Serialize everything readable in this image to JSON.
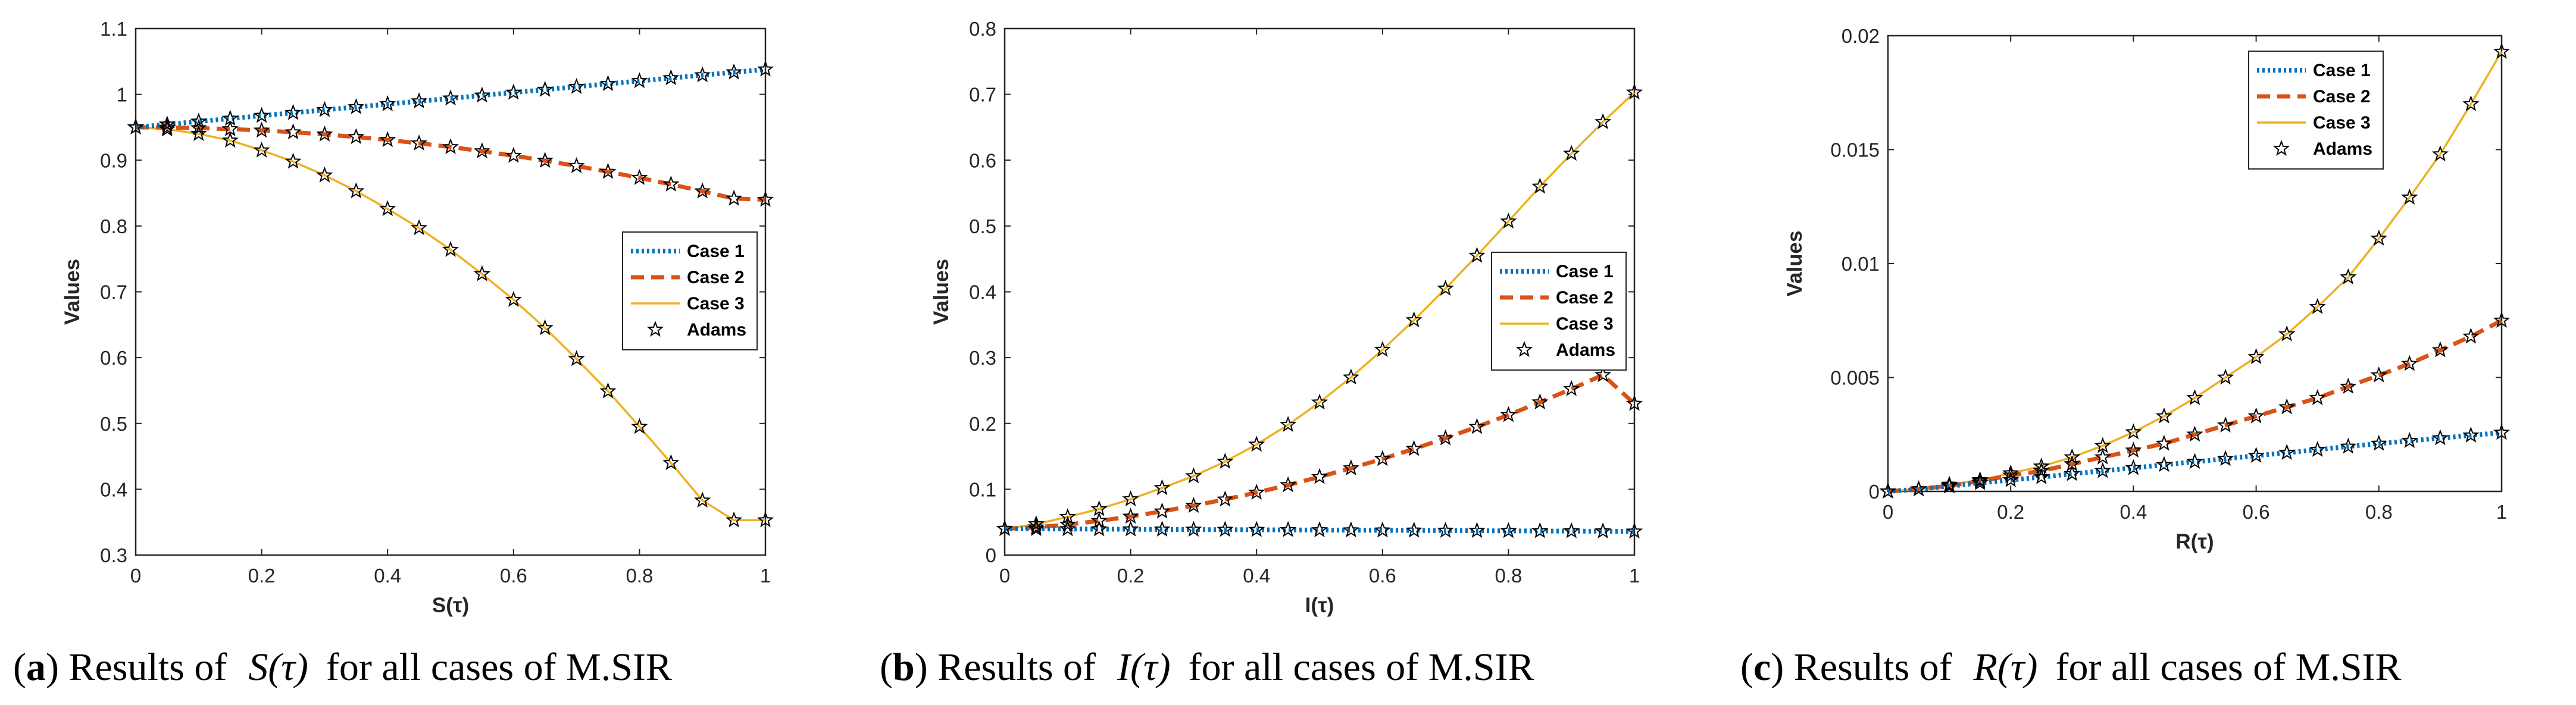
{
  "chart_data": [
    {
      "type": "line",
      "id": "a",
      "xlabel": "S(τ)",
      "ylabel": "Values",
      "xlim": [
        0,
        1
      ],
      "ylim": [
        0.3,
        1.1
      ],
      "xticks": [
        "0",
        "0.2",
        "0.4",
        "0.6",
        "0.8",
        "1"
      ],
      "yticks": [
        "0.3",
        "0.4",
        "0.5",
        "0.6",
        "0.7",
        "0.8",
        "0.9",
        "1",
        "1.1"
      ],
      "legend": [
        "Case 1",
        "Case 2",
        "Case 3",
        "Adams"
      ],
      "legend_position": "center-right",
      "x": [
        0,
        0.05,
        0.1,
        0.15,
        0.2,
        0.25,
        0.3,
        0.35,
        0.4,
        0.45,
        0.5,
        0.55,
        0.6,
        0.65,
        0.7,
        0.75,
        0.8,
        0.85,
        0.9,
        0.95,
        1
      ],
      "series": [
        {
          "name": "Case 1",
          "color": "#0072BD",
          "style": "dotted",
          "values": [
            0.95,
            0.9544,
            0.9588,
            0.9632,
            0.9676,
            0.972,
            0.9764,
            0.9808,
            0.9852,
            0.9896,
            0.994,
            0.9984,
            1.0028,
            1.0072,
            1.0116,
            1.016,
            1.0204,
            1.0248,
            1.0292,
            1.0336,
            1.038
          ]
        },
        {
          "name": "Case 2",
          "color": "#D95319",
          "style": "dashed",
          "values": [
            0.95,
            0.9497,
            0.9488,
            0.9473,
            0.9452,
            0.9425,
            0.9392,
            0.9353,
            0.9308,
            0.9257,
            0.92,
            0.9137,
            0.9068,
            0.8993,
            0.8912,
            0.8825,
            0.8732,
            0.8633,
            0.8528,
            0.8417,
            0.84
          ]
        },
        {
          "name": "Case 3",
          "color": "#EDB120",
          "style": "solid",
          "values": [
            0.95,
            0.947,
            0.94,
            0.93,
            0.915,
            0.898,
            0.877,
            0.853,
            0.826,
            0.797,
            0.764,
            0.727,
            0.688,
            0.645,
            0.598,
            0.549,
            0.495,
            0.44,
            0.383,
            0.353,
            0.353
          ]
        }
      ],
      "markers": {
        "name": "Adams",
        "color": "#000000",
        "style": "pentagram"
      }
    },
    {
      "type": "line",
      "id": "b",
      "xlabel": "I(τ)",
      "ylabel": "Values",
      "xlim": [
        0,
        1
      ],
      "ylim": [
        0,
        0.8
      ],
      "xticks": [
        "0",
        "0.2",
        "0.4",
        "0.6",
        "0.8",
        "1"
      ],
      "yticks": [
        "0",
        "0.1",
        "0.2",
        "0.3",
        "0.4",
        "0.5",
        "0.6",
        "0.7",
        "0.8"
      ],
      "legend": [
        "Case 1",
        "Case 2",
        "Case 3",
        "Adams"
      ],
      "legend_position": "center-right",
      "x": [
        0,
        0.05,
        0.1,
        0.15,
        0.2,
        0.25,
        0.3,
        0.35,
        0.4,
        0.45,
        0.5,
        0.55,
        0.6,
        0.65,
        0.7,
        0.75,
        0.8,
        0.85,
        0.9,
        0.95,
        1
      ],
      "series": [
        {
          "name": "Case 1",
          "color": "#0072BD",
          "style": "dotted",
          "values": [
            0.04,
            0.0398,
            0.0396,
            0.0394,
            0.0392,
            0.039,
            0.0388,
            0.0386,
            0.0384,
            0.0382,
            0.038,
            0.0378,
            0.0376,
            0.0374,
            0.0372,
            0.037,
            0.0368,
            0.0366,
            0.0364,
            0.0362,
            0.036
          ]
        },
        {
          "name": "Case 2",
          "color": "#D95319",
          "style": "dashed",
          "values": [
            0.04,
            0.0422,
            0.0464,
            0.052,
            0.0586,
            0.0664,
            0.075,
            0.0846,
            0.095,
            0.1064,
            0.1188,
            0.132,
            0.1462,
            0.1614,
            0.1776,
            0.1948,
            0.213,
            0.2322,
            0.2524,
            0.2736,
            0.23
          ]
        },
        {
          "name": "Case 3",
          "color": "#EDB120",
          "style": "solid",
          "values": [
            0.04,
            0.047,
            0.058,
            0.07,
            0.085,
            0.102,
            0.12,
            0.142,
            0.168,
            0.198,
            0.232,
            0.27,
            0.312,
            0.357,
            0.405,
            0.455,
            0.507,
            0.56,
            0.61,
            0.658,
            0.703
          ]
        }
      ],
      "markers": {
        "name": "Adams",
        "color": "#000000",
        "style": "pentagram"
      }
    },
    {
      "type": "line",
      "id": "c",
      "xlabel": "R(τ)",
      "ylabel": "Values",
      "xlim": [
        0,
        1
      ],
      "ylim": [
        0,
        0.02
      ],
      "xticks": [
        "0",
        "0.2",
        "0.4",
        "0.6",
        "0.8",
        "1"
      ],
      "yticks": [
        "0",
        "0.005",
        "0.01",
        "0.015",
        "0.02"
      ],
      "legend": [
        "Case 1",
        "Case 2",
        "Case 3",
        "Adams"
      ],
      "legend_position": "top-center",
      "x": [
        0,
        0.05,
        0.1,
        0.15,
        0.2,
        0.25,
        0.3,
        0.35,
        0.4,
        0.45,
        0.5,
        0.55,
        0.6,
        0.65,
        0.7,
        0.75,
        0.8,
        0.85,
        0.9,
        0.95,
        1
      ],
      "series": [
        {
          "name": "Case 1",
          "color": "#0072BD",
          "style": "dotted",
          "values": [
            0,
            0.0001,
            0.00023,
            0.00037,
            0.0005,
            0.00063,
            0.00077,
            0.0009,
            0.00103,
            0.00117,
            0.0013,
            0.00143,
            0.00157,
            0.0017,
            0.00183,
            0.00197,
            0.0021,
            0.00222,
            0.00234,
            0.00246,
            0.00258
          ]
        },
        {
          "name": "Case 2",
          "color": "#D95319",
          "style": "dashed",
          "values": [
            0,
            0.0001,
            0.00025,
            0.00045,
            0.0007,
            0.0009,
            0.0012,
            0.0015,
            0.0018,
            0.0021,
            0.0025,
            0.0029,
            0.0033,
            0.0037,
            0.0041,
            0.0046,
            0.0051,
            0.0056,
            0.0062,
            0.0068,
            0.0075
          ]
        },
        {
          "name": "Case 3",
          "color": "#EDB120",
          "style": "solid",
          "values": [
            0,
            0.0001,
            0.0003,
            0.0005,
            0.0008,
            0.0011,
            0.0015,
            0.002,
            0.0026,
            0.0033,
            0.0041,
            0.005,
            0.0059,
            0.0069,
            0.0081,
            0.0094,
            0.0111,
            0.0129,
            0.0148,
            0.017,
            0.0193
          ]
        }
      ],
      "markers": {
        "name": "Adams",
        "color": "#000000",
        "style": "pentagram"
      }
    }
  ],
  "captions": [
    {
      "letter": "a",
      "prefix": "Results of",
      "math": "S(τ)",
      "suffix": "for all cases of M.SIR"
    },
    {
      "letter": "b",
      "prefix": "Results of",
      "math": "I(τ)",
      "suffix": "for all cases of M.SIR"
    },
    {
      "letter": "c",
      "prefix": "Results of",
      "math": "R(τ)",
      "suffix": "for all cases of M.SIR"
    }
  ]
}
